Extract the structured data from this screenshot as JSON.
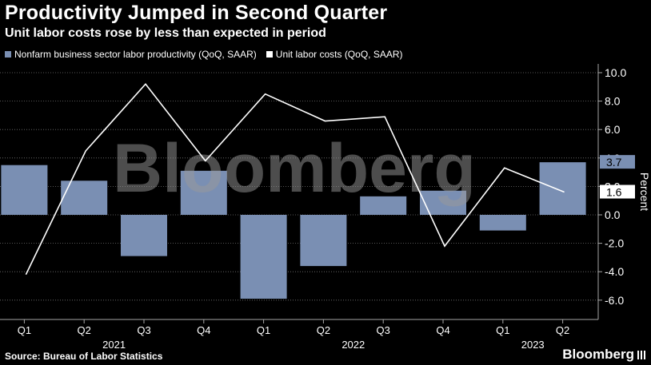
{
  "header": {
    "title": "Productivity Jumped in Second Quarter",
    "subtitle": "Unit labor costs rose by less than expected in period"
  },
  "footer": {
    "source": "Source: Bureau of Labor Statistics",
    "brand": "Bloomberg"
  },
  "watermark": "Bloomberg",
  "colors": {
    "background": "#000000",
    "bar": "#7a8fb3",
    "line": "#ffffff",
    "text": "#ffffff",
    "axis": "#a6a6a6"
  },
  "chart_data": {
    "type": "bar",
    "title": "Productivity Jumped in Second Quarter",
    "subtitle": "Unit labor costs rose by less than expected in period",
    "quarters": [
      "Q1",
      "Q2",
      "Q3",
      "Q4",
      "Q1",
      "Q2",
      "Q3",
      "Q4",
      "Q1",
      "Q2"
    ],
    "years": [
      {
        "label": "2021",
        "start": 0,
        "end": 3
      },
      {
        "label": "2022",
        "start": 4,
        "end": 7
      },
      {
        "label": "2023",
        "start": 8,
        "end": 9
      }
    ],
    "series": [
      {
        "name": "Nonfarm business sector labor productivity (QoQ, SAAR)",
        "kind": "bar",
        "values": [
          3.5,
          2.4,
          -2.9,
          3.1,
          -5.9,
          -3.6,
          1.3,
          1.7,
          -1.1,
          3.7
        ]
      },
      {
        "name": "Unit labor costs (QoQ, SAAR)",
        "kind": "line",
        "values": [
          -4.2,
          4.5,
          9.2,
          3.8,
          8.5,
          6.6,
          6.9,
          -2.2,
          3.3,
          1.6
        ]
      }
    ],
    "last_value_labels": [
      "3.7",
      "1.6"
    ],
    "y_ticks": [
      "10.0",
      "8.0",
      "6.0",
      "4.0",
      "2.0",
      "0.0",
      "-2.0",
      "-4.0",
      "-6.0"
    ],
    "ylim": [
      -7.5,
      10.5
    ],
    "ylabel": "Percent",
    "xlabel": "",
    "legend_position": "top-left"
  }
}
